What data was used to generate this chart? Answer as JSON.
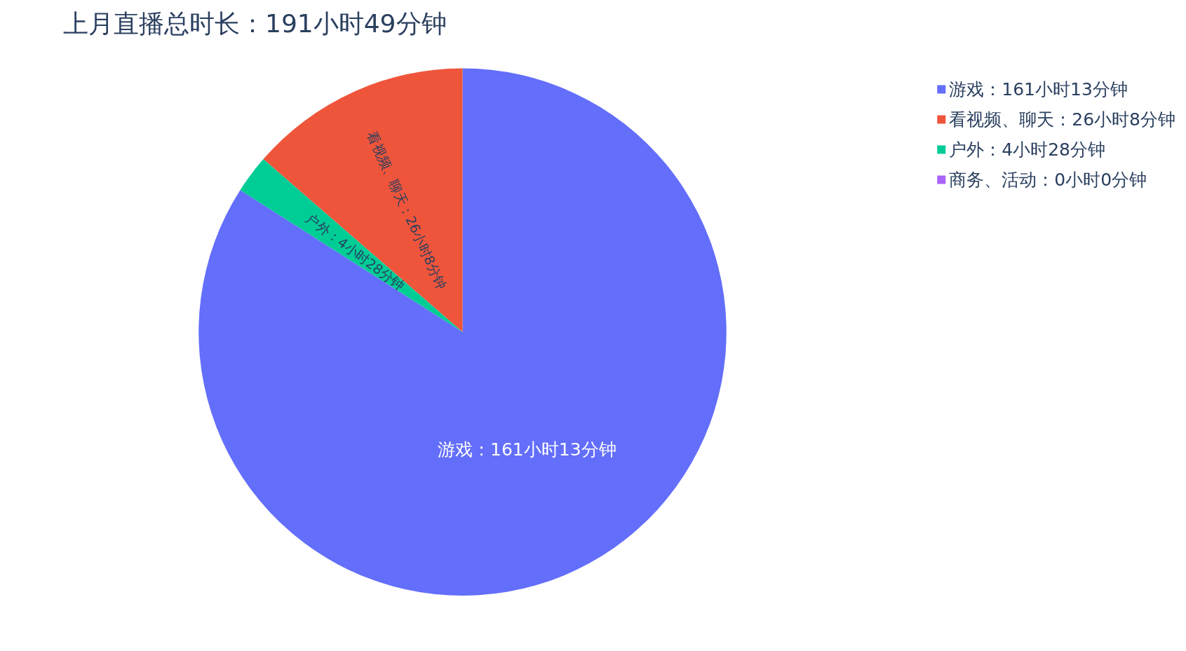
{
  "chart_data": {
    "type": "pie",
    "title": "上月直播总时长：191小时49分钟",
    "categories": [
      "游戏：161小时13分钟",
      "看视频、聊天：26小时8分钟",
      "户外：4小时28分钟",
      "商务、活动：0小时0分钟"
    ],
    "values": [
      84.05,
      13.62,
      2.33,
      0
    ],
    "colors": [
      "#636efa",
      "#ef553b",
      "#00cc96",
      "#ab63fa"
    ],
    "legend": "top right"
  }
}
